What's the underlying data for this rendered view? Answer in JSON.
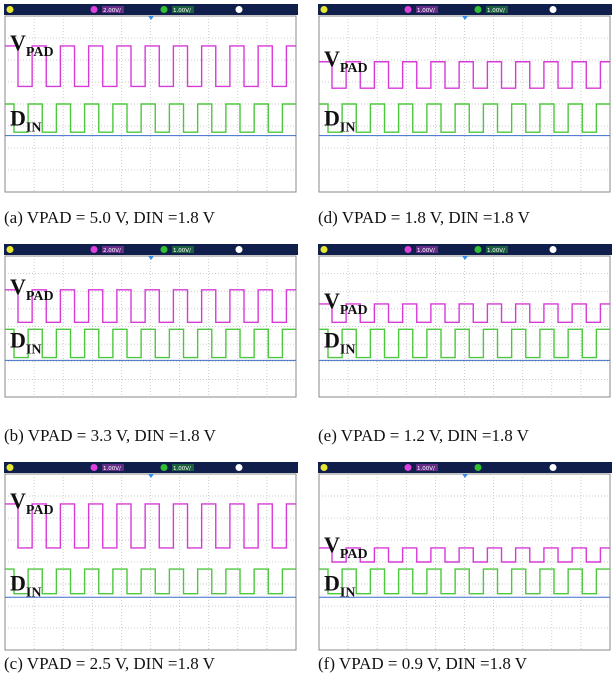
{
  "panels": [
    {
      "caption": "(a) VPAD = 5.0 V, DIN =1.8 V",
      "vpad": "V",
      "vpad_sub": "PAD",
      "din": "D",
      "din_sub": "IN",
      "scales": [
        "2.00V/",
        "1.00V/"
      ]
    },
    {
      "caption": "(b) VPAD = 3.3 V, DIN =1.8 V",
      "vpad": "V",
      "vpad_sub": "PAD",
      "din": "D",
      "din_sub": "IN",
      "scales": [
        "2.00V/",
        "1.00V/"
      ]
    },
    {
      "caption": "(c) VPAD = 2.5 V, DIN =1.8 V",
      "vpad": "V",
      "vpad_sub": "PAD",
      "din": "D",
      "din_sub": "IN",
      "scales": [
        "1.00V/",
        "1.00V/"
      ]
    },
    {
      "caption": "(d) VPAD = 1.8 V, DIN =1.8 V",
      "vpad": "V",
      "vpad_sub": "PAD",
      "din": "D",
      "din_sub": "IN",
      "scales": [
        "1.00V/",
        "1.00V/"
      ]
    },
    {
      "caption": "(e) VPAD = 1.2 V, DIN =1.8 V",
      "vpad": "V",
      "vpad_sub": "PAD",
      "din": "D",
      "din_sub": "IN",
      "scales": [
        "1.00V/",
        "1.00V/"
      ]
    },
    {
      "caption": "(f) VPAD = 0.9 V, DIN =1.8 V",
      "vpad": "V",
      "vpad_sub": "PAD",
      "din": "D",
      "din_sub": "IN",
      "scales": [
        "1.00V/"
      ]
    }
  ]
}
